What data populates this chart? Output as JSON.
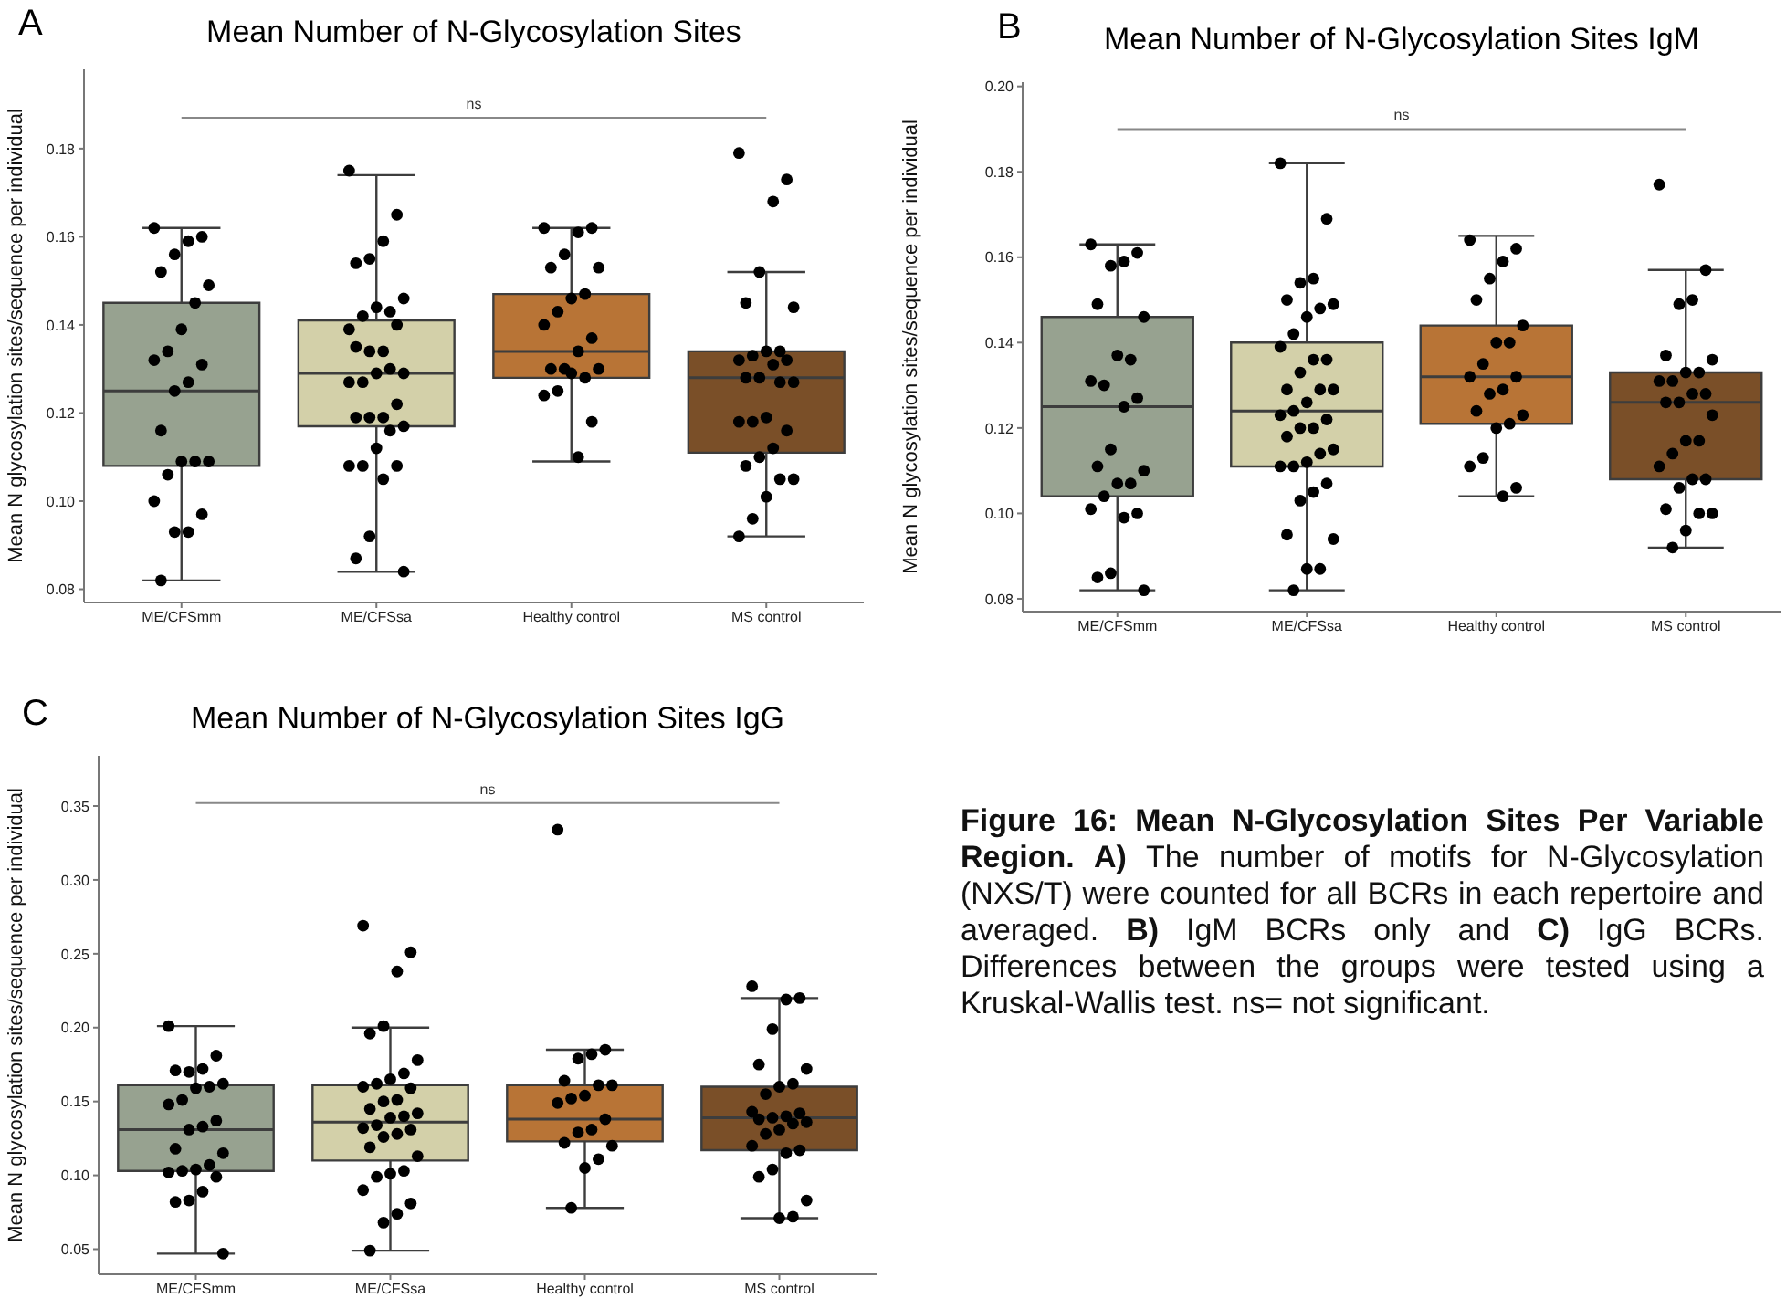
{
  "chart_data": [
    {
      "type": "box",
      "title": "Mean Number of N-Glycosylation Sites",
      "ylabel": "Mean N glycosylation sites/sequence per individual",
      "annotations": [
        "A"
      ],
      "ref_lines": [
        {
          "axis": "y",
          "value": 0.187,
          "label": "ns",
          "color": "#888888"
        }
      ],
      "categories": [
        "ME/CFSmm",
        "ME/CFSsa",
        "Healthy control",
        "MS control"
      ],
      "colors": [
        "#97a290",
        "#d3d0a9",
        "#b87436",
        "#7a4f28"
      ],
      "boxes": [
        {
          "low": 0.082,
          "q1": 0.108,
          "median": 0.125,
          "q3": 0.145,
          "high": 0.162
        },
        {
          "low": 0.084,
          "q1": 0.117,
          "median": 0.129,
          "q3": 0.141,
          "high": 0.174
        },
        {
          "low": 0.109,
          "q1": 0.128,
          "median": 0.134,
          "q3": 0.147,
          "high": 0.162
        },
        {
          "low": 0.092,
          "q1": 0.111,
          "median": 0.128,
          "q3": 0.134,
          "high": 0.152
        }
      ],
      "series": [
        {
          "type": "scatter",
          "marker": "circle",
          "color": "#000000",
          "x": [
            "ME/CFSmm",
            "ME/CFSmm",
            "ME/CFSmm",
            "ME/CFSmm",
            "ME/CFSmm",
            "ME/CFSmm",
            "ME/CFSmm",
            "ME/CFSmm",
            "ME/CFSmm",
            "ME/CFSmm",
            "ME/CFSmm",
            "ME/CFSmm",
            "ME/CFSmm",
            "ME/CFSmm",
            "ME/CFSmm",
            "ME/CFSmm",
            "ME/CFSmm",
            "ME/CFSmm",
            "ME/CFSmm",
            "ME/CFSmm",
            "ME/CFSmm",
            "ME/CFSmm",
            "ME/CFSmm"
          ],
          "values": [
            0.162,
            0.16,
            0.159,
            0.156,
            0.152,
            0.149,
            0.145,
            0.139,
            0.134,
            0.132,
            0.131,
            0.127,
            0.125,
            0.116,
            0.109,
            0.109,
            0.109,
            0.106,
            0.1,
            0.097,
            0.093,
            0.093,
            0.082
          ]
        },
        {
          "type": "scatter",
          "marker": "circle",
          "color": "#000000",
          "x": [
            "ME/CFSsa",
            "ME/CFSsa",
            "ME/CFSsa",
            "ME/CFSsa",
            "ME/CFSsa",
            "ME/CFSsa",
            "ME/CFSsa",
            "ME/CFSsa",
            "ME/CFSsa",
            "ME/CFSsa",
            "ME/CFSsa",
            "ME/CFSsa",
            "ME/CFSsa",
            "ME/CFSsa",
            "ME/CFSsa",
            "ME/CFSsa",
            "ME/CFSsa",
            "ME/CFSsa",
            "ME/CFSsa",
            "ME/CFSsa",
            "ME/CFSsa",
            "ME/CFSsa",
            "ME/CFSsa",
            "ME/CFSsa",
            "ME/CFSsa",
            "ME/CFSsa",
            "ME/CFSsa",
            "ME/CFSsa",
            "ME/CFSsa",
            "ME/CFSsa",
            "ME/CFSsa",
            "ME/CFSsa",
            "ME/CFSsa"
          ],
          "values": [
            0.175,
            0.165,
            0.159,
            0.155,
            0.154,
            0.146,
            0.143,
            0.144,
            0.142,
            0.139,
            0.14,
            0.134,
            0.134,
            0.135,
            0.129,
            0.13,
            0.129,
            0.127,
            0.127,
            0.122,
            0.119,
            0.119,
            0.119,
            0.117,
            0.116,
            0.112,
            0.108,
            0.108,
            0.108,
            0.105,
            0.092,
            0.087,
            0.084
          ]
        },
        {
          "type": "scatter",
          "marker": "circle",
          "color": "#000000",
          "x": [
            "Healthy control",
            "Healthy control",
            "Healthy control",
            "Healthy control",
            "Healthy control",
            "Healthy control",
            "Healthy control",
            "Healthy control",
            "Healthy control",
            "Healthy control",
            "Healthy control",
            "Healthy control",
            "Healthy control",
            "Healthy control",
            "Healthy control",
            "Healthy control",
            "Healthy control",
            "Healthy control",
            "Healthy control",
            "Healthy control",
            "Healthy control"
          ],
          "values": [
            0.162,
            0.162,
            0.161,
            0.156,
            0.153,
            0.153,
            0.147,
            0.146,
            0.143,
            0.14,
            0.137,
            0.134,
            0.13,
            0.13,
            0.13,
            0.128,
            0.129,
            0.125,
            0.124,
            0.118,
            0.11
          ]
        },
        {
          "type": "scatter",
          "marker": "circle",
          "color": "#000000",
          "x": [
            "MS control",
            "MS control",
            "MS control",
            "MS control",
            "MS control",
            "MS control",
            "MS control",
            "MS control",
            "MS control",
            "MS control",
            "MS control",
            "MS control",
            "MS control",
            "MS control",
            "MS control",
            "MS control",
            "MS control",
            "MS control",
            "MS control",
            "MS control",
            "MS control",
            "MS control",
            "MS control",
            "MS control",
            "MS control",
            "MS control",
            "MS control",
            "MS control"
          ],
          "values": [
            0.179,
            0.173,
            0.168,
            0.152,
            0.145,
            0.144,
            0.134,
            0.134,
            0.133,
            0.132,
            0.132,
            0.131,
            0.128,
            0.128,
            0.127,
            0.127,
            0.119,
            0.118,
            0.118,
            0.116,
            0.112,
            0.11,
            0.108,
            0.105,
            0.105,
            0.101,
            0.096,
            0.092
          ]
        }
      ],
      "ylim": [
        0.077,
        0.198
      ],
      "yticks": [
        0.08,
        {
          "value": 0.1,
          "label": "0.10"
        },
        0.12,
        0.14,
        0.16,
        0.18
      ]
    },
    {
      "type": "box",
      "title": "Mean Number of N-Glycosylation Sites IgM",
      "ylabel": "Mean N glycosylation sites/sequence per individual",
      "annotations": [
        "B"
      ],
      "ref_lines": [
        {
          "axis": "y",
          "value": 0.19,
          "label": "ns",
          "color": "#888888"
        }
      ],
      "categories": [
        "ME/CFSmm",
        "ME/CFSsa",
        "Healthy control",
        "MS control"
      ],
      "colors": [
        "#97a290",
        "#d3d0a9",
        "#b87436",
        "#7a4f28"
      ],
      "boxes": [
        {
          "low": 0.082,
          "q1": 0.104,
          "median": 0.125,
          "q3": 0.146,
          "high": 0.163
        },
        {
          "low": 0.082,
          "q1": 0.111,
          "median": 0.124,
          "q3": 0.14,
          "high": 0.182
        },
        {
          "low": 0.104,
          "q1": 0.121,
          "median": 0.132,
          "q3": 0.144,
          "high": 0.165
        },
        {
          "low": 0.092,
          "q1": 0.108,
          "median": 0.126,
          "q3": 0.133,
          "high": 0.157
        }
      ],
      "series": [
        {
          "type": "scatter",
          "marker": "circle",
          "color": "#000000",
          "x": [
            "ME/CFSmm",
            "ME/CFSmm",
            "ME/CFSmm",
            "ME/CFSmm",
            "ME/CFSmm",
            "ME/CFSmm",
            "ME/CFSmm",
            "ME/CFSmm",
            "ME/CFSmm",
            "ME/CFSmm",
            "ME/CFSmm",
            "ME/CFSmm",
            "ME/CFSmm",
            "ME/CFSmm",
            "ME/CFSmm",
            "ME/CFSmm",
            "ME/CFSmm",
            "ME/CFSmm",
            "ME/CFSmm",
            "ME/CFSmm",
            "ME/CFSmm",
            "ME/CFSmm",
            "ME/CFSmm",
            "ME/CFSmm"
          ],
          "values": [
            0.163,
            0.161,
            0.159,
            0.158,
            0.149,
            0.146,
            0.136,
            0.137,
            0.13,
            0.131,
            0.127,
            0.125,
            0.115,
            0.111,
            0.11,
            0.107,
            0.107,
            0.104,
            0.101,
            0.1,
            0.099,
            0.086,
            0.085,
            0.082
          ]
        },
        {
          "type": "scatter",
          "marker": "circle",
          "color": "#000000",
          "x": [
            "ME/CFSsa",
            "ME/CFSsa",
            "ME/CFSsa",
            "ME/CFSsa",
            "ME/CFSsa",
            "ME/CFSsa",
            "ME/CFSsa",
            "ME/CFSsa",
            "ME/CFSsa",
            "ME/CFSsa",
            "ME/CFSsa",
            "ME/CFSsa",
            "ME/CFSsa",
            "ME/CFSsa",
            "ME/CFSsa",
            "ME/CFSsa",
            "ME/CFSsa",
            "ME/CFSsa",
            "ME/CFSsa",
            "ME/CFSsa",
            "ME/CFSsa",
            "ME/CFSsa",
            "ME/CFSsa",
            "ME/CFSsa",
            "ME/CFSsa",
            "ME/CFSsa",
            "ME/CFSsa",
            "ME/CFSsa",
            "ME/CFSsa",
            "ME/CFSsa",
            "ME/CFSsa",
            "ME/CFSsa",
            "ME/CFSsa",
            "ME/CFSsa",
            "ME/CFSsa",
            "ME/CFSsa"
          ],
          "values": [
            0.182,
            0.169,
            0.155,
            0.154,
            0.15,
            0.149,
            0.148,
            0.146,
            0.142,
            0.139,
            0.136,
            0.136,
            0.133,
            0.129,
            0.129,
            0.129,
            0.126,
            0.124,
            0.123,
            0.122,
            0.12,
            0.12,
            0.118,
            0.115,
            0.114,
            0.112,
            0.111,
            0.111,
            0.107,
            0.105,
            0.103,
            0.095,
            0.094,
            0.087,
            0.087,
            0.082
          ]
        },
        {
          "type": "scatter",
          "marker": "circle",
          "color": "#000000",
          "x": [
            "Healthy control",
            "Healthy control",
            "Healthy control",
            "Healthy control",
            "Healthy control",
            "Healthy control",
            "Healthy control",
            "Healthy control",
            "Healthy control",
            "Healthy control",
            "Healthy control",
            "Healthy control",
            "Healthy control",
            "Healthy control",
            "Healthy control",
            "Healthy control",
            "Healthy control",
            "Healthy control",
            "Healthy control",
            "Healthy control",
            "Healthy control"
          ],
          "values": [
            0.164,
            0.162,
            0.159,
            0.155,
            0.15,
            0.144,
            0.14,
            0.14,
            0.135,
            0.132,
            0.132,
            0.129,
            0.128,
            0.124,
            0.123,
            0.121,
            0.12,
            0.113,
            0.111,
            0.106,
            0.104
          ]
        },
        {
          "type": "scatter",
          "marker": "circle",
          "color": "#000000",
          "x": [
            "MS control",
            "MS control",
            "MS control",
            "MS control",
            "MS control",
            "MS control",
            "MS control",
            "MS control",
            "MS control",
            "MS control",
            "MS control",
            "MS control",
            "MS control",
            "MS control",
            "MS control",
            "MS control",
            "MS control",
            "MS control",
            "MS control",
            "MS control",
            "MS control",
            "MS control",
            "MS control",
            "MS control",
            "MS control",
            "MS control",
            "MS control"
          ],
          "values": [
            0.177,
            0.157,
            0.15,
            0.149,
            0.137,
            0.136,
            0.133,
            0.133,
            0.131,
            0.131,
            0.128,
            0.128,
            0.126,
            0.126,
            0.123,
            0.117,
            0.117,
            0.114,
            0.111,
            0.108,
            0.108,
            0.106,
            0.101,
            0.1,
            0.1,
            0.096,
            0.092
          ]
        }
      ],
      "ylim": [
        0.077,
        0.201
      ],
      "yticks": [
        0.08,
        {
          "value": 0.1,
          "label": "0.10"
        },
        0.12,
        0.14,
        0.16,
        0.18,
        {
          "value": 0.2,
          "label": "0.20"
        }
      ]
    },
    {
      "type": "box",
      "title": "Mean Number of N-Glycosylation Sites IgG",
      "ylabel": "Mean N glycosylation sites/sequence per individual",
      "annotations": [
        "C"
      ],
      "ref_lines": [
        {
          "axis": "y",
          "value": 0.352,
          "label": "ns",
          "color": "#888888"
        }
      ],
      "categories": [
        "ME/CFSmm",
        "ME/CFSsa",
        "Healthy control",
        "MS control"
      ],
      "colors": [
        "#97a290",
        "#d3d0a9",
        "#b87436",
        "#7a4f28"
      ],
      "boxes": [
        {
          "low": 0.047,
          "q1": 0.103,
          "median": 0.131,
          "q3": 0.161,
          "high": 0.201
        },
        {
          "low": 0.049,
          "q1": 0.11,
          "median": 0.136,
          "q3": 0.161,
          "high": 0.2
        },
        {
          "low": 0.078,
          "q1": 0.123,
          "median": 0.138,
          "q3": 0.161,
          "high": 0.185
        },
        {
          "low": 0.071,
          "q1": 0.117,
          "median": 0.139,
          "q3": 0.16,
          "high": 0.22
        }
      ],
      "series": [
        {
          "type": "scatter",
          "marker": "circle",
          "color": "#000000",
          "x": [
            "ME/CFSmm",
            "ME/CFSmm",
            "ME/CFSmm",
            "ME/CFSmm",
            "ME/CFSmm",
            "ME/CFSmm",
            "ME/CFSmm",
            "ME/CFSmm",
            "ME/CFSmm",
            "ME/CFSmm",
            "ME/CFSmm",
            "ME/CFSmm",
            "ME/CFSmm",
            "ME/CFSmm",
            "ME/CFSmm",
            "ME/CFSmm",
            "ME/CFSmm",
            "ME/CFSmm",
            "ME/CFSmm",
            "ME/CFSmm",
            "ME/CFSmm",
            "ME/CFSmm",
            "ME/CFSmm",
            "ME/CFSmm"
          ],
          "values": [
            0.201,
            0.181,
            0.172,
            0.17,
            0.171,
            0.162,
            0.16,
            0.159,
            0.151,
            0.148,
            0.137,
            0.133,
            0.131,
            0.118,
            0.115,
            0.107,
            0.104,
            0.103,
            0.102,
            0.099,
            0.089,
            0.083,
            0.082,
            0.047
          ]
        },
        {
          "type": "scatter",
          "marker": "circle",
          "color": "#000000",
          "x": [
            "ME/CFSsa",
            "ME/CFSsa",
            "ME/CFSsa",
            "ME/CFSsa",
            "ME/CFSsa",
            "ME/CFSsa",
            "ME/CFSsa",
            "ME/CFSsa",
            "ME/CFSsa",
            "ME/CFSsa",
            "ME/CFSsa",
            "ME/CFSsa",
            "ME/CFSsa",
            "ME/CFSsa",
            "ME/CFSsa",
            "ME/CFSsa",
            "ME/CFSsa",
            "ME/CFSsa",
            "ME/CFSsa",
            "ME/CFSsa",
            "ME/CFSsa",
            "ME/CFSsa",
            "ME/CFSsa",
            "ME/CFSsa",
            "ME/CFSsa",
            "ME/CFSsa",
            "ME/CFSsa",
            "ME/CFSsa",
            "ME/CFSsa",
            "ME/CFSsa",
            "ME/CFSsa",
            "ME/CFSsa"
          ],
          "values": [
            0.269,
            0.251,
            0.238,
            0.201,
            0.196,
            0.178,
            0.169,
            0.165,
            0.162,
            0.16,
            0.159,
            0.151,
            0.15,
            0.145,
            0.142,
            0.14,
            0.139,
            0.134,
            0.132,
            0.131,
            0.128,
            0.126,
            0.119,
            0.113,
            0.103,
            0.101,
            0.099,
            0.09,
            0.081,
            0.074,
            0.068,
            0.049
          ]
        },
        {
          "type": "scatter",
          "marker": "circle",
          "color": "#000000",
          "x": [
            "Healthy control",
            "Healthy control",
            "Healthy control",
            "Healthy control",
            "Healthy control",
            "Healthy control",
            "Healthy control",
            "Healthy control",
            "Healthy control",
            "Healthy control",
            "Healthy control",
            "Healthy control",
            "Healthy control",
            "Healthy control",
            "Healthy control",
            "Healthy control",
            "Healthy control",
            "Healthy control"
          ],
          "values": [
            0.334,
            0.185,
            0.182,
            0.179,
            0.164,
            0.161,
            0.161,
            0.154,
            0.152,
            0.149,
            0.138,
            0.131,
            0.129,
            0.122,
            0.12,
            0.111,
            0.105,
            0.078
          ]
        },
        {
          "type": "scatter",
          "marker": "circle",
          "color": "#000000",
          "x": [
            "MS control",
            "MS control",
            "MS control",
            "MS control",
            "MS control",
            "MS control",
            "MS control",
            "MS control",
            "MS control",
            "MS control",
            "MS control",
            "MS control",
            "MS control",
            "MS control",
            "MS control",
            "MS control",
            "MS control",
            "MS control",
            "MS control",
            "MS control",
            "MS control",
            "MS control",
            "MS control",
            "MS control",
            "MS control",
            "MS control"
          ],
          "values": [
            0.228,
            0.22,
            0.219,
            0.199,
            0.175,
            0.172,
            0.162,
            0.16,
            0.155,
            0.143,
            0.142,
            0.14,
            0.139,
            0.138,
            0.136,
            0.135,
            0.131,
            0.128,
            0.12,
            0.117,
            0.115,
            0.104,
            0.099,
            0.083,
            0.072,
            0.071
          ]
        }
      ],
      "ylim": [
        0.033,
        0.384
      ],
      "yticks": [
        0.05,
        {
          "value": 0.1,
          "label": "0.10"
        },
        0.15,
        {
          "value": 0.2,
          "label": "0.20"
        },
        0.25,
        {
          "value": 0.3,
          "label": "0.30"
        },
        0.35
      ]
    },
    {
      "type": "other",
      "title": "Figure 16: Mean N-Glycosylation Sites Per Variable Region.",
      "annotations": [
        "A)",
        "The number of motifs for N-Glycosylation (NXS/T) were counted for all BCRs in each repertoire and averaged.",
        "B)",
        "IgM BCRs only and",
        "C)",
        "IgG BCRs. Differences between the groups were tested using a Kruskal-Wallis test. ns= not significant."
      ]
    }
  ]
}
